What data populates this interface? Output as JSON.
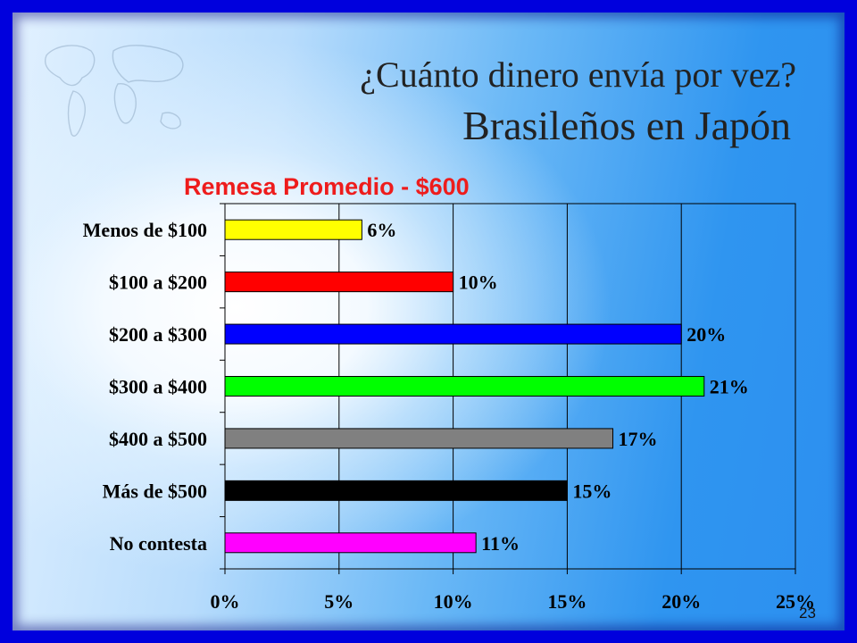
{
  "slide": {
    "title_line1": "¿Cuánto dinero envía por vez?",
    "title_line2": "Brasileños en Japón",
    "page_number": "23"
  },
  "chart_data": {
    "type": "bar",
    "orientation": "horizontal",
    "title": "Remesa Promedio - $600",
    "categories": [
      "Menos de $100",
      "$100 a $200",
      "$200 a $300",
      "$300 a $400",
      "$400 a $500",
      "Más de $500",
      "No contesta"
    ],
    "values": [
      6,
      10,
      20,
      21,
      17,
      15,
      11
    ],
    "value_labels": [
      "6%",
      "10%",
      "20%",
      "21%",
      "17%",
      "15%",
      "11%"
    ],
    "bar_colors": [
      "#ffff00",
      "#ff0000",
      "#0000ff",
      "#00ff00",
      "#808080",
      "#000000",
      "#ff00ff"
    ],
    "xlim": [
      0,
      25
    ],
    "x_ticks": [
      0,
      5,
      10,
      15,
      20,
      25
    ],
    "x_tick_labels": [
      "0%",
      "5%",
      "10%",
      "15%",
      "20%",
      "25%"
    ],
    "grid": true,
    "legend": "none"
  }
}
